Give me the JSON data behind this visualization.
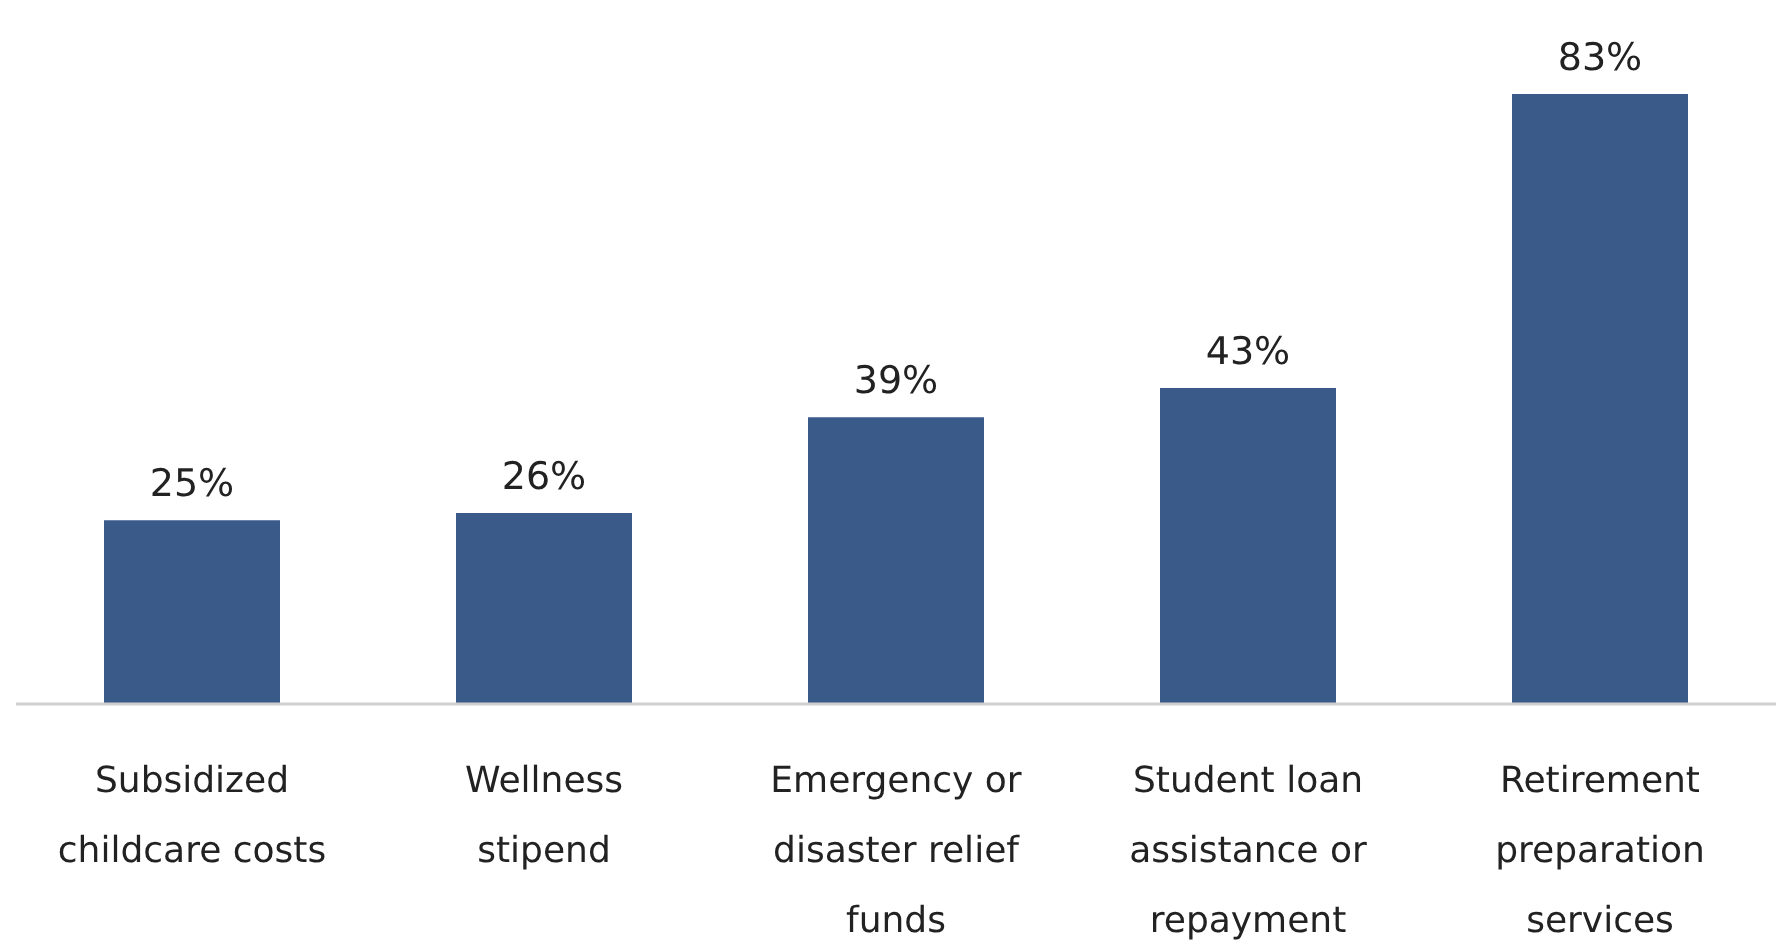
{
  "chart_data": {
    "type": "bar",
    "categories": [
      "Subsidized childcare costs",
      "Wellness stipend",
      "Emergency or disaster relief funds",
      "Student loan assistance or repayment",
      "Retirement preparation services"
    ],
    "values": [
      25,
      26,
      39,
      43,
      83
    ],
    "value_labels": [
      "25%",
      "26%",
      "39%",
      "43%",
      "83%"
    ],
    "color": "#3a5a89"
  }
}
